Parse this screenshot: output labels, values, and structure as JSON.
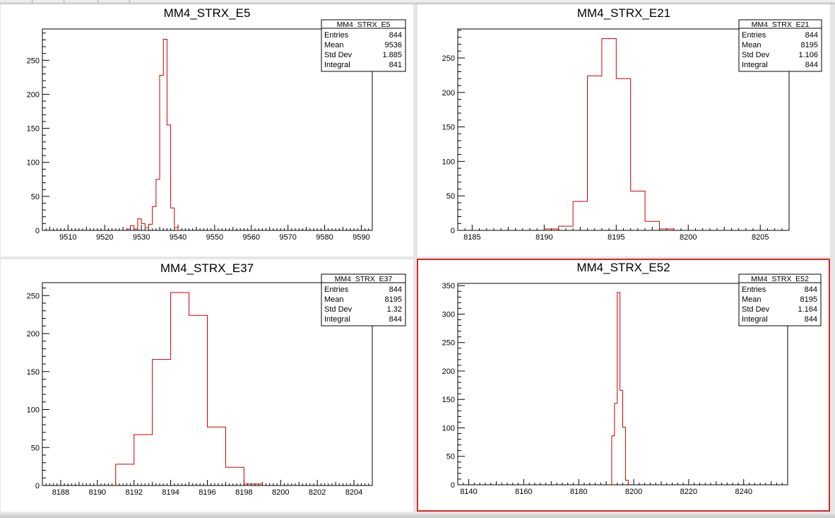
{
  "window": {
    "accent": "#d62a2a",
    "hist_color": "#cc0000"
  },
  "chart_data": [
    {
      "type": "histogram",
      "title": "MM4_STRX_E5",
      "xlim": [
        9503,
        9593
      ],
      "ylim": [
        0,
        296
      ],
      "xticks": [
        9510,
        9520,
        9530,
        9540,
        9550,
        9560,
        9570,
        9580,
        9590
      ],
      "yticks": [
        0,
        50,
        100,
        150,
        200,
        250
      ],
      "bins": {
        "edges": [
          9526,
          9527,
          9528,
          9529,
          9530,
          9531,
          9532,
          9533,
          9534,
          9535,
          9536,
          9537,
          9538,
          9539,
          9540
        ],
        "counts": [
          2,
          7,
          2,
          17,
          10,
          4,
          9,
          35,
          75,
          228,
          281,
          155,
          33,
          4
        ]
      },
      "stats": {
        "name": "MM4_STRX_E5",
        "entries": "844",
        "mean": "9536",
        "std_dev": "1.885",
        "integral": "841"
      },
      "selected": false
    },
    {
      "type": "histogram",
      "title": "MM4_STRX_E21",
      "xlim": [
        8184,
        8207
      ],
      "ylim": [
        0,
        292
      ],
      "xticks": [
        8185,
        8190,
        8195,
        8200,
        8205
      ],
      "yticks": [
        0,
        50,
        100,
        150,
        200,
        250
      ],
      "bins": {
        "edges": [
          8190,
          8191,
          8192,
          8193,
          8194,
          8195,
          8196,
          8197,
          8198,
          8199
        ],
        "counts": [
          2,
          6,
          42,
          224,
          278,
          220,
          57,
          13,
          2
        ]
      },
      "stats": {
        "name": "MM4_STRX_E21",
        "entries": "844",
        "mean": "8195",
        "std_dev": "1.106",
        "integral": "844"
      },
      "selected": false
    },
    {
      "type": "histogram",
      "title": "MM4_STRX_E37",
      "xlim": [
        8187,
        8205
      ],
      "ylim": [
        0,
        267
      ],
      "xticks": [
        8188,
        8190,
        8192,
        8194,
        8196,
        8198,
        8200,
        8202,
        8204
      ],
      "yticks": [
        0,
        50,
        100,
        150,
        200,
        250
      ],
      "bins": {
        "edges": [
          8191,
          8192,
          8193,
          8194,
          8195,
          8196,
          8197,
          8198,
          8199
        ],
        "counts": [
          28,
          67,
          166,
          254,
          224,
          77,
          24,
          2
        ]
      },
      "stats": {
        "name": "MM4_STRX_E37",
        "entries": "844",
        "mean": "8195",
        "std_dev": "1.32",
        "integral": "844"
      },
      "selected": false
    },
    {
      "type": "histogram",
      "title": "MM4_STRX_E52",
      "xlim": [
        8136,
        8256
      ],
      "ylim": [
        0,
        354
      ],
      "xticks": [
        8140,
        8160,
        8180,
        8200,
        8220,
        8240
      ],
      "yticks": [
        0,
        50,
        100,
        150,
        200,
        250,
        300,
        350
      ],
      "bins": {
        "edges": [
          8192,
          8193,
          8194,
          8195,
          8196,
          8197,
          8198
        ],
        "counts": [
          86,
          143,
          338,
          166,
          101,
          8
        ]
      },
      "stats": {
        "name": "MM4_STRX_E52",
        "entries": "844",
        "mean": "8195",
        "std_dev": "1.164",
        "integral": "844"
      },
      "selected": true
    }
  ],
  "stat_labels": {
    "entries": "Entries",
    "mean": "Mean",
    "std_dev": "Std Dev",
    "integral": "Integral"
  }
}
